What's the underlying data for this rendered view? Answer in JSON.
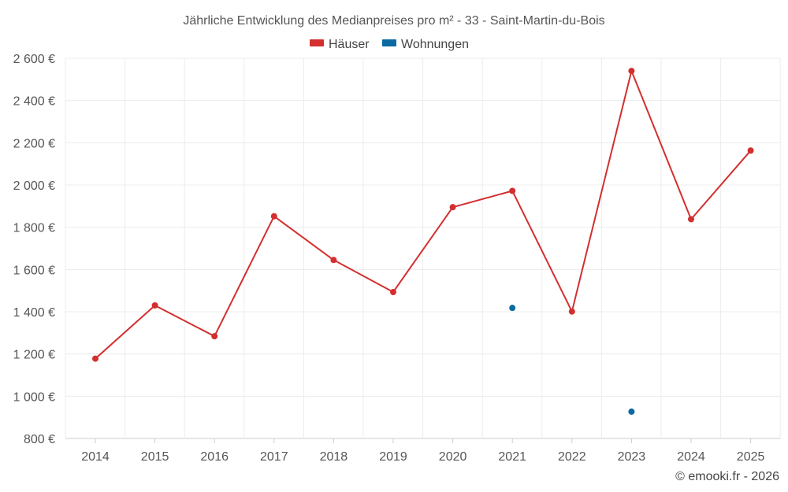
{
  "chart_data": {
    "type": "line",
    "title": "Jährliche Entwicklung des Medianpreises pro m² - 33 - Saint-Martin-du-Bois",
    "categories": [
      "2014",
      "2015",
      "2016",
      "2017",
      "2018",
      "2019",
      "2020",
      "2021",
      "2022",
      "2023",
      "2024",
      "2025"
    ],
    "series": [
      {
        "name": "Häuser",
        "color": "#d32f2f",
        "values": [
          1178,
          1430,
          1284,
          1852,
          1645,
          1493,
          1895,
          1972,
          1401,
          2540,
          1838,
          2163
        ]
      },
      {
        "name": "Wohnungen",
        "color": "#0b6aa2",
        "values": [
          null,
          null,
          null,
          null,
          null,
          null,
          null,
          1418,
          null,
          927,
          null,
          null
        ]
      }
    ],
    "ylim": [
      800,
      2600
    ],
    "yticks": [
      800,
      1000,
      1200,
      1400,
      1600,
      1800,
      2000,
      2200,
      2400,
      2600
    ],
    "ytick_labels": [
      "800 €",
      "1 000 €",
      "1 200 €",
      "1 400 €",
      "1 600 €",
      "1 800 €",
      "2 000 €",
      "2 200 €",
      "2 400 €",
      "2 600 €"
    ],
    "xlabel": "",
    "ylabel": "",
    "grid": true,
    "legend_position": "top-center"
  },
  "credit": "© emooki.fr - 2026"
}
